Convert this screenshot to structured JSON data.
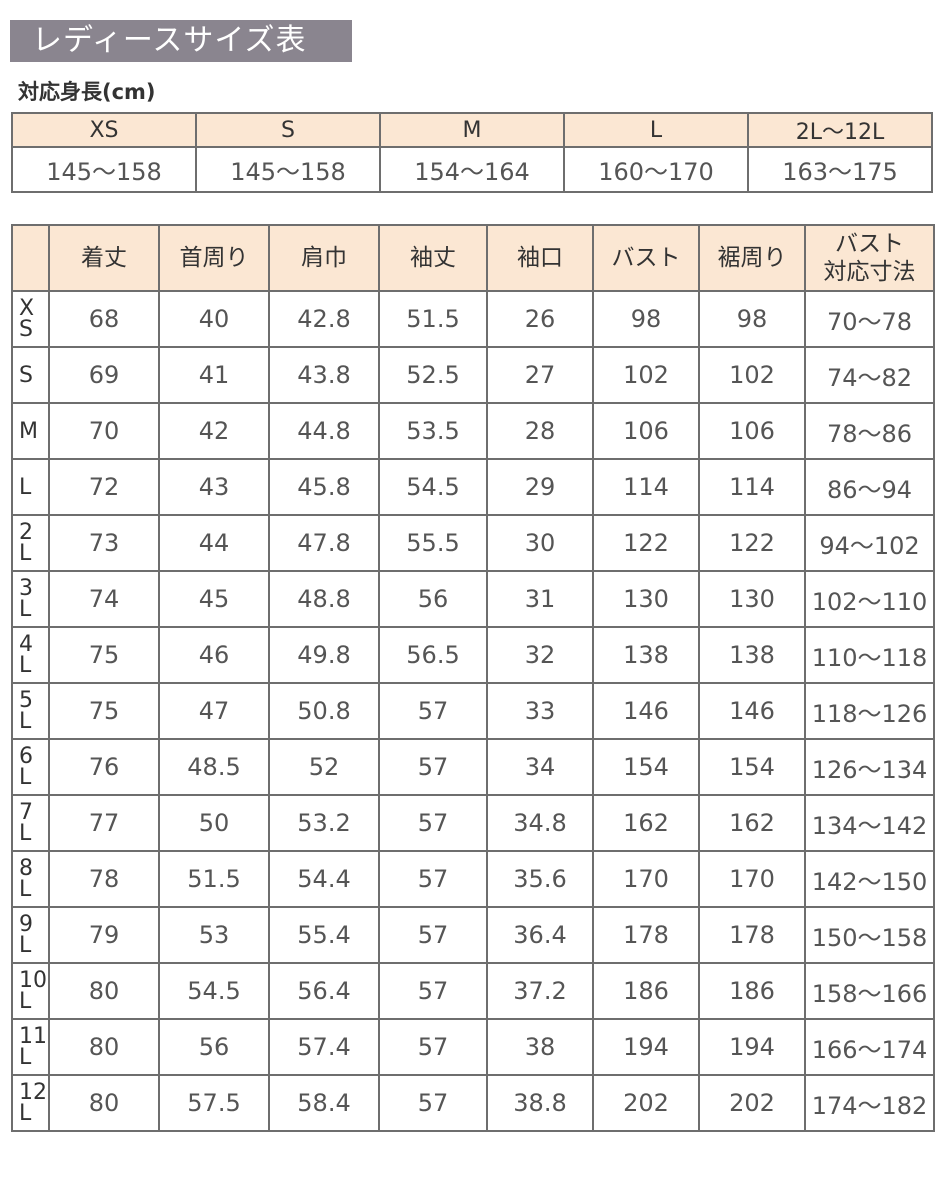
{
  "title": "レディースサイズ表",
  "height_label": "対応身長(cm)",
  "height_table": {
    "sizes": [
      "XS",
      "S",
      "M",
      "L",
      "2L〜12L"
    ],
    "ranges": [
      "145〜158",
      "145〜158",
      "154〜164",
      "160〜170",
      "163〜175"
    ]
  },
  "size_table": {
    "headers": [
      "",
      "着丈",
      "首周り",
      "肩巾",
      "袖丈",
      "袖口",
      "バスト",
      "裾周り",
      "バスト\n対応寸法"
    ],
    "rows": [
      {
        "label": "X\nS",
        "values": [
          "68",
          "40",
          "42.8",
          "51.5",
          "26",
          "98",
          "98",
          "70〜78"
        ]
      },
      {
        "label": "S",
        "values": [
          "69",
          "41",
          "43.8",
          "52.5",
          "27",
          "102",
          "102",
          "74〜82"
        ]
      },
      {
        "label": "M",
        "values": [
          "70",
          "42",
          "44.8",
          "53.5",
          "28",
          "106",
          "106",
          "78〜86"
        ]
      },
      {
        "label": "L",
        "values": [
          "72",
          "43",
          "45.8",
          "54.5",
          "29",
          "114",
          "114",
          "86〜94"
        ]
      },
      {
        "label": "2\nL",
        "values": [
          "73",
          "44",
          "47.8",
          "55.5",
          "30",
          "122",
          "122",
          "94〜102"
        ]
      },
      {
        "label": "3\nL",
        "values": [
          "74",
          "45",
          "48.8",
          "56",
          "31",
          "130",
          "130",
          "102〜110"
        ]
      },
      {
        "label": "4\nL",
        "values": [
          "75",
          "46",
          "49.8",
          "56.5",
          "32",
          "138",
          "138",
          "110〜118"
        ]
      },
      {
        "label": "5\nL",
        "values": [
          "75",
          "47",
          "50.8",
          "57",
          "33",
          "146",
          "146",
          "118〜126"
        ]
      },
      {
        "label": "6\nL",
        "values": [
          "76",
          "48.5",
          "52",
          "57",
          "34",
          "154",
          "154",
          "126〜134"
        ]
      },
      {
        "label": "7\nL",
        "values": [
          "77",
          "50",
          "53.2",
          "57",
          "34.8",
          "162",
          "162",
          "134〜142"
        ]
      },
      {
        "label": "8\nL",
        "values": [
          "78",
          "51.5",
          "54.4",
          "57",
          "35.6",
          "170",
          "170",
          "142〜150"
        ]
      },
      {
        "label": "9\nL",
        "values": [
          "79",
          "53",
          "55.4",
          "57",
          "36.4",
          "178",
          "178",
          "150〜158"
        ]
      },
      {
        "label": "10\nL",
        "values": [
          "80",
          "54.5",
          "56.4",
          "57",
          "37.2",
          "186",
          "186",
          "158〜166"
        ]
      },
      {
        "label": "11\nL",
        "values": [
          "80",
          "56",
          "57.4",
          "57",
          "38",
          "194",
          "194",
          "166〜174"
        ]
      },
      {
        "label": "12\nL",
        "values": [
          "80",
          "57.5",
          "58.4",
          "57",
          "38.8",
          "202",
          "202",
          "174〜182"
        ]
      }
    ]
  },
  "colors": {
    "title_bg": "#8a858f",
    "header_bg": "#fbe7d3",
    "border": "#6e6e6e"
  }
}
